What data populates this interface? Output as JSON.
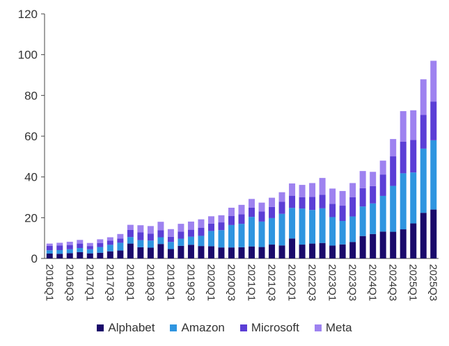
{
  "chart_data": {
    "type": "bar",
    "stacked": true,
    "ylim": [
      0,
      120
    ],
    "yticks": [
      0,
      20,
      40,
      60,
      80,
      100,
      120
    ],
    "grid": false,
    "legend_position": "bottom",
    "categories": [
      "2016Q1",
      "2016Q2",
      "2016Q3",
      "2016Q4",
      "2017Q1",
      "2017Q2",
      "2017Q3",
      "2017Q4",
      "2018Q1",
      "2018Q2",
      "2018Q3",
      "2018Q4",
      "2019Q1",
      "2019Q2",
      "2019Q3",
      "2019Q4",
      "2020Q1",
      "2020Q2",
      "2020Q3",
      "2020Q4",
      "2021Q1",
      "2021Q2",
      "2021Q3",
      "2021Q4",
      "2022Q1",
      "2022Q2",
      "2022Q3",
      "2022Q4",
      "2023Q1",
      "2023Q2",
      "2023Q3",
      "2023Q4",
      "2024Q1",
      "2024Q2",
      "2024Q3",
      "2024Q4",
      "2025Q1",
      "2025Q2",
      "2025Q3"
    ],
    "tick_labels": [
      "2016Q1",
      "2016Q3",
      "2017Q1",
      "2017Q3",
      "2018Q1",
      "2018Q3",
      "2019Q1",
      "2019Q3",
      "2020Q1",
      "2020Q3",
      "2021Q1",
      "2021Q3",
      "2022Q1",
      "2022Q3",
      "2023Q1",
      "2023Q3",
      "2024Q1",
      "2024Q3",
      "2025Q1",
      "2025Q3"
    ],
    "series": [
      {
        "name": "Alphabet",
        "color": "#1a0a6b",
        "values": [
          2.4,
          2.3,
          2.6,
          3.1,
          2.5,
          2.8,
          3.5,
          3.9,
          7.3,
          5.5,
          5.3,
          7.1,
          4.6,
          6.2,
          6.7,
          6.1,
          6.0,
          5.4,
          5.4,
          5.5,
          5.9,
          5.6,
          6.8,
          6.4,
          9.8,
          6.8,
          7.3,
          7.6,
          6.3,
          6.9,
          8.1,
          11.0,
          12.0,
          13.2,
          13.1,
          14.3,
          17.2,
          22.4,
          24.0
        ]
      },
      {
        "name": "Amazon",
        "color": "#2f95e0",
        "values": [
          1.6,
          1.8,
          1.9,
          2.0,
          2.0,
          2.8,
          3.2,
          3.8,
          3.2,
          3.5,
          3.5,
          3.3,
          3.5,
          3.5,
          4.0,
          5.0,
          7.5,
          8.5,
          11.0,
          11.5,
          14.5,
          12.5,
          13.0,
          15.5,
          15.0,
          17.7,
          16.5,
          17.0,
          14.0,
          11.5,
          12.5,
          14.5,
          15.0,
          17.5,
          22.5,
          27.5,
          25.0,
          31.5,
          34.0
        ]
      },
      {
        "name": "Microsoft",
        "color": "#5b3ed6",
        "values": [
          2.2,
          2.3,
          2.1,
          2.2,
          1.6,
          2.0,
          2.0,
          2.1,
          3.5,
          3.8,
          3.3,
          3.5,
          2.5,
          3.5,
          3.4,
          3.9,
          3.6,
          3.8,
          4.5,
          4.7,
          4.5,
          4.9,
          5.5,
          5.9,
          6.0,
          5.6,
          6.4,
          6.6,
          6.5,
          7.5,
          9.5,
          9.0,
          8.5,
          10.5,
          14.5,
          15.5,
          16.0,
          16.5,
          19.0
        ]
      },
      {
        "name": "Meta",
        "color": "#9e82f0",
        "values": [
          1.1,
          1.3,
          1.6,
          1.8,
          1.5,
          1.8,
          1.7,
          2.2,
          2.5,
          3.5,
          3.8,
          4.1,
          3.8,
          3.8,
          4.0,
          4.2,
          3.6,
          3.5,
          4.0,
          4.6,
          4.3,
          4.4,
          4.5,
          4.7,
          6.0,
          6.0,
          6.8,
          8.3,
          7.5,
          7.2,
          6.9,
          8.4,
          7.0,
          6.8,
          8.5,
          15.0,
          14.5,
          17.5,
          20.0
        ]
      }
    ]
  }
}
